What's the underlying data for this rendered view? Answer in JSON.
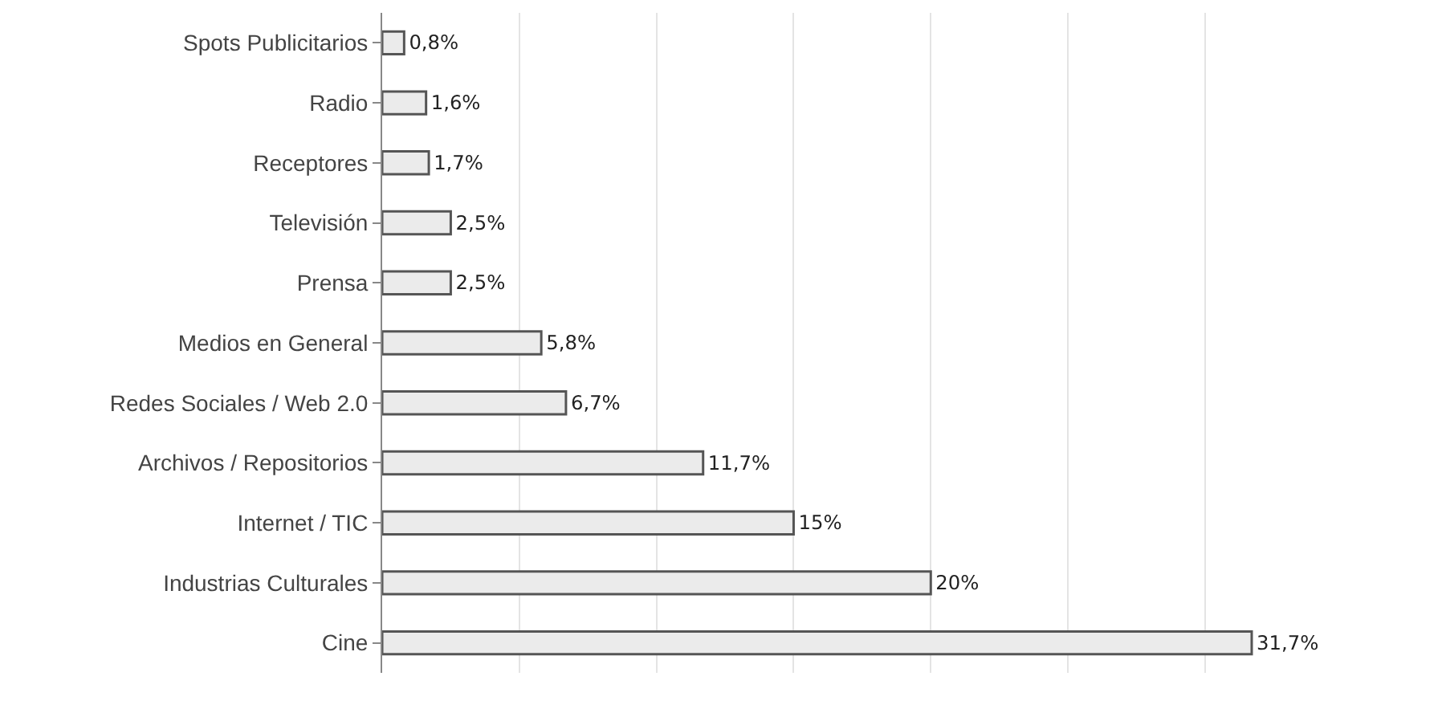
{
  "chart_data": {
    "type": "bar",
    "orientation": "horizontal",
    "categories": [
      "Spots Publicitarios",
      "Radio",
      "Receptores",
      "Televisión",
      "Prensa",
      "Medios en General",
      "Redes Sociales / Web 2.0",
      "Archivos / Repositorios",
      "Internet / TIC",
      "Industrias Culturales",
      "Cine"
    ],
    "values": [
      0.8,
      1.6,
      1.7,
      2.5,
      2.5,
      5.8,
      6.7,
      11.7,
      15,
      20,
      31.7
    ],
    "value_labels": [
      "0,8%",
      "1,6%",
      "1,7%",
      "2,5%",
      "2,5%",
      "5,8%",
      "6,7%",
      "11,7%",
      "15%",
      "20%",
      "31,7%"
    ],
    "color": "#ebebeb",
    "grid": "x"
  }
}
